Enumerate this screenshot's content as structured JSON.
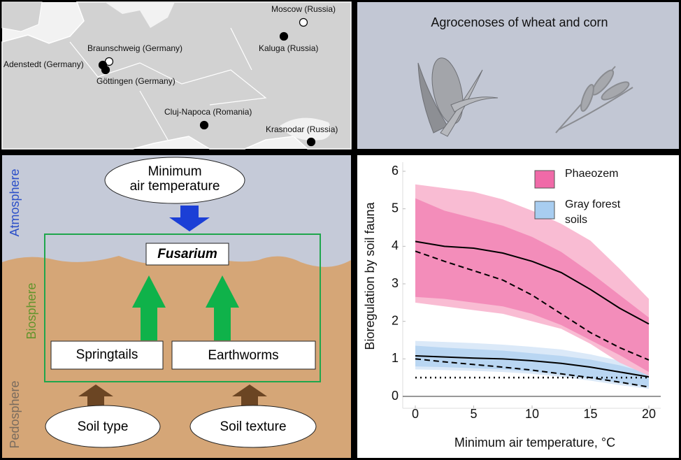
{
  "map": {
    "places": [
      {
        "label": "Moscow (Russia)",
        "marker": "open"
      },
      {
        "label": "Kaluga (Russia)",
        "marker": "filled"
      },
      {
        "label": "Braunschweig (Germany)",
        "marker": "open"
      },
      {
        "label": "Adenstedt (Germany)",
        "marker": "filled"
      },
      {
        "label": "Göttingen (Germany)",
        "marker": "filled"
      },
      {
        "label": "Cluj-Napoca (Romania)",
        "marker": "filled"
      },
      {
        "label": "Krasnodar (Russia)",
        "marker": "filled"
      }
    ]
  },
  "crops": {
    "title": "Agrocenoses of wheat and corn"
  },
  "diagram": {
    "spheres": [
      "Atmosphere",
      "Biosphere",
      "Pedosphere"
    ],
    "driver": [
      "Minimum",
      "air temperature"
    ],
    "target": "Fusarium",
    "fauna": [
      "Springtails",
      "Earthworms"
    ],
    "soil": [
      "Soil type",
      "Soil texture"
    ]
  },
  "chart_data": {
    "type": "line",
    "xlabel": "Minimum air temperature, °C",
    "ylabel": "Bioregulation by soil fauna",
    "x": [
      0,
      2.5,
      5,
      7.5,
      10,
      12.5,
      15,
      17.5,
      20
    ],
    "xlim": [
      0,
      20
    ],
    "xticks": [
      0,
      5,
      10,
      15,
      20
    ],
    "ylim": [
      0,
      6
    ],
    "yticks": [
      0,
      1,
      2,
      3,
      4,
      5,
      6
    ],
    "groups": [
      {
        "name": "Gray forest soils",
        "color": "#a8cdf0",
        "outer_color": "#dbe9f8",
        "inner_color": "#b9d6f2",
        "solid": [
          1.08,
          1.05,
          1.02,
          1.0,
          0.95,
          0.88,
          0.78,
          0.65,
          0.52
        ],
        "dashed": [
          1.0,
          0.92,
          0.85,
          0.78,
          0.7,
          0.6,
          0.5,
          0.38,
          0.25
        ],
        "outer_upper": [
          1.48,
          1.45,
          1.42,
          1.38,
          1.32,
          1.25,
          1.12,
          0.95,
          0.72
        ],
        "outer_lower": [
          0.72,
          0.7,
          0.68,
          0.65,
          0.6,
          0.52,
          0.42,
          0.3,
          0.2
        ],
        "inner_upper": [
          1.35,
          1.3,
          1.26,
          1.22,
          1.15,
          1.08,
          0.98,
          0.83,
          0.62
        ],
        "inner_lower": [
          0.8,
          0.78,
          0.75,
          0.72,
          0.66,
          0.58,
          0.48,
          0.36,
          0.26
        ]
      },
      {
        "name": "Phaeozem",
        "color": "#f06aa8",
        "outer_color": "#f9bcd3",
        "inner_color": "#f38dba",
        "solid": [
          4.13,
          4.0,
          3.95,
          3.82,
          3.6,
          3.3,
          2.85,
          2.35,
          1.93
        ],
        "dashed": [
          3.87,
          3.6,
          3.35,
          3.1,
          2.7,
          2.2,
          1.7,
          1.3,
          0.97
        ],
        "outer_upper": [
          5.65,
          5.55,
          5.45,
          5.25,
          4.95,
          4.6,
          4.15,
          3.4,
          2.6
        ],
        "outer_lower": [
          2.5,
          2.4,
          2.3,
          2.2,
          2.0,
          1.8,
          1.4,
          0.9,
          0.55
        ],
        "inner_upper": [
          5.28,
          4.95,
          4.75,
          4.55,
          4.25,
          3.85,
          3.3,
          2.7,
          2.1
        ],
        "inner_lower": [
          2.65,
          2.6,
          2.5,
          2.4,
          2.2,
          1.9,
          1.5,
          1.1,
          0.65
        ]
      }
    ],
    "reference": [
      0.5,
      0.5,
      0.5,
      0.5,
      0.5,
      0.5,
      0.5,
      0.5,
      0.5
    ]
  }
}
